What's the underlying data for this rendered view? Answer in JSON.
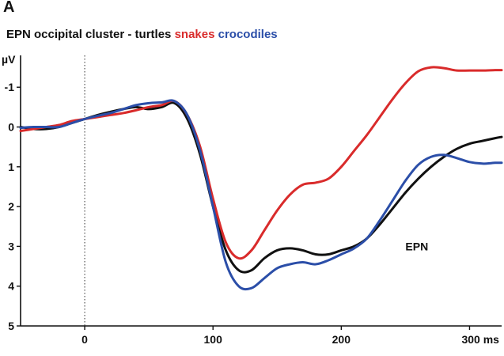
{
  "panel_label": "A",
  "chart_data": {
    "type": "line",
    "title": "EPN occipital cluster - turtles",
    "title_series": [
      {
        "text": "snakes",
        "color": "#d92b2b"
      },
      {
        "text": "crocodiles",
        "color": "#2b4ea8"
      }
    ],
    "ylabel": "µV",
    "xlabel": "ms",
    "y_inverted": true,
    "xlim": [
      -50,
      325
    ],
    "ylim": [
      -1.8,
      5
    ],
    "x_ticks": [
      0,
      100,
      200,
      300
    ],
    "x_tick_labels": [
      "0",
      "100",
      "200",
      "300 ms"
    ],
    "y_ticks": [
      -1,
      0,
      1,
      2,
      3,
      4,
      5
    ],
    "y_tick_labels": [
      "-1",
      "0",
      "1",
      "2",
      "3",
      "4",
      "5"
    ],
    "zero_line": {
      "x": 0,
      "style": "dotted"
    },
    "annotations": [
      {
        "text": "EPN",
        "x": 250,
        "y": 3.0
      }
    ],
    "series": [
      {
        "color": "#111111",
        "x": [
          -50,
          -40,
          -30,
          -20,
          -10,
          0,
          10,
          20,
          30,
          40,
          50,
          60,
          70,
          80,
          90,
          100,
          110,
          120,
          130,
          140,
          150,
          160,
          170,
          180,
          190,
          200,
          210,
          220,
          230,
          240,
          250,
          260,
          270,
          280,
          290,
          300,
          310,
          320,
          325
        ],
        "y": [
          0.0,
          0.05,
          0.05,
          0.0,
          -0.1,
          -0.2,
          -0.3,
          -0.38,
          -0.45,
          -0.5,
          -0.45,
          -0.5,
          -0.6,
          -0.2,
          0.7,
          2.0,
          3.1,
          3.6,
          3.6,
          3.3,
          3.1,
          3.05,
          3.1,
          3.2,
          3.2,
          3.1,
          3.0,
          2.8,
          2.45,
          2.05,
          1.65,
          1.3,
          1.0,
          0.75,
          0.55,
          0.42,
          0.35,
          0.28,
          0.25
        ]
      },
      {
        "color": "#d92b2b",
        "x": [
          -50,
          -40,
          -30,
          -20,
          -10,
          0,
          10,
          20,
          30,
          40,
          50,
          60,
          70,
          80,
          90,
          100,
          110,
          120,
          130,
          140,
          150,
          160,
          170,
          180,
          190,
          200,
          210,
          220,
          230,
          240,
          250,
          260,
          270,
          280,
          290,
          300,
          310,
          320,
          325
        ],
        "y": [
          0.1,
          0.05,
          0.0,
          -0.05,
          -0.15,
          -0.2,
          -0.25,
          -0.3,
          -0.35,
          -0.42,
          -0.5,
          -0.55,
          -0.65,
          -0.3,
          0.5,
          1.8,
          2.9,
          3.3,
          3.1,
          2.6,
          2.1,
          1.7,
          1.45,
          1.4,
          1.3,
          1.0,
          0.6,
          0.2,
          -0.25,
          -0.7,
          -1.1,
          -1.4,
          -1.5,
          -1.48,
          -1.42,
          -1.42,
          -1.42,
          -1.43,
          -1.43
        ]
      },
      {
        "color": "#2b4ea8",
        "x": [
          -50,
          -40,
          -30,
          -20,
          -10,
          0,
          10,
          20,
          30,
          40,
          50,
          60,
          70,
          80,
          90,
          100,
          110,
          120,
          130,
          140,
          150,
          160,
          170,
          180,
          190,
          200,
          210,
          220,
          230,
          240,
          250,
          260,
          270,
          280,
          290,
          300,
          310,
          320,
          325
        ],
        "y": [
          0.02,
          0.0,
          0.0,
          0.0,
          -0.1,
          -0.2,
          -0.28,
          -0.35,
          -0.45,
          -0.55,
          -0.6,
          -0.62,
          -0.65,
          -0.3,
          0.6,
          2.0,
          3.4,
          4.0,
          4.05,
          3.8,
          3.55,
          3.45,
          3.4,
          3.45,
          3.35,
          3.2,
          3.05,
          2.8,
          2.35,
          1.85,
          1.35,
          0.95,
          0.75,
          0.7,
          0.78,
          0.88,
          0.92,
          0.9,
          0.9
        ]
      }
    ]
  }
}
